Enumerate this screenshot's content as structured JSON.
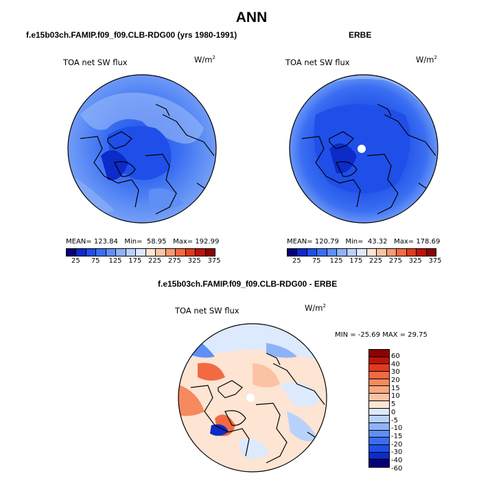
{
  "title": "ANN",
  "panels": [
    {
      "case_title": "f.e15b03ch.FAMIP.f09_f09.CLB-RDG00 (yrs 1980-1991)",
      "variable": "TOA net SW flux",
      "units": "W/m",
      "units_exp": "2",
      "mean_label": "MEAN=",
      "mean": "123.84",
      "min_label": "Min=",
      "min": "58.95",
      "max_label": "Max=",
      "max": "192.99"
    },
    {
      "case_title": "ERBE",
      "variable": "TOA net SW flux",
      "units": "W/m",
      "units_exp": "2",
      "mean_label": "MEAN=",
      "mean": "120.79",
      "min_label": "Min=",
      "min": "43.32",
      "max_label": "Max=",
      "max": "178.69"
    },
    {
      "case_title": "f.e15b03ch.FAMIP.f09_f09.CLB-RDG00 - ERBE",
      "variable": "TOA net SW flux",
      "units": "W/m",
      "units_exp": "2",
      "minmax_text": "MIN = -25.69  MAX =  29.75"
    }
  ],
  "colorbar_abs": {
    "ticks": [
      "25",
      "75",
      "125",
      "175",
      "225",
      "275",
      "325",
      "375"
    ],
    "colors": [
      "#050078",
      "#0c2bc8",
      "#1f4fe8",
      "#3a6ef2",
      "#5f8ff5",
      "#8eb2f8",
      "#b8d2fb",
      "#dde9fd",
      "#fde4d3",
      "#fbc3a4",
      "#f79a72",
      "#f26a42",
      "#e03b1f",
      "#bc1409",
      "#8a0202"
    ]
  },
  "colorbar_diff": {
    "ticks": [
      "60",
      "40",
      "30",
      "20",
      "15",
      "10",
      "5",
      "0",
      "-5",
      "-10",
      "-15",
      "-20",
      "-30",
      "-40",
      "-60"
    ],
    "colors": [
      "#8a0202",
      "#bc1409",
      "#e03b1f",
      "#f26a42",
      "#f7895f",
      "#faa67f",
      "#fbc3a4",
      "#fde4d3",
      "#dde9fd",
      "#b8d2fb",
      "#8eb2f8",
      "#5f8ff5",
      "#3a6ef2",
      "#1f4fe8",
      "#0c2bc8",
      "#050078"
    ]
  }
}
